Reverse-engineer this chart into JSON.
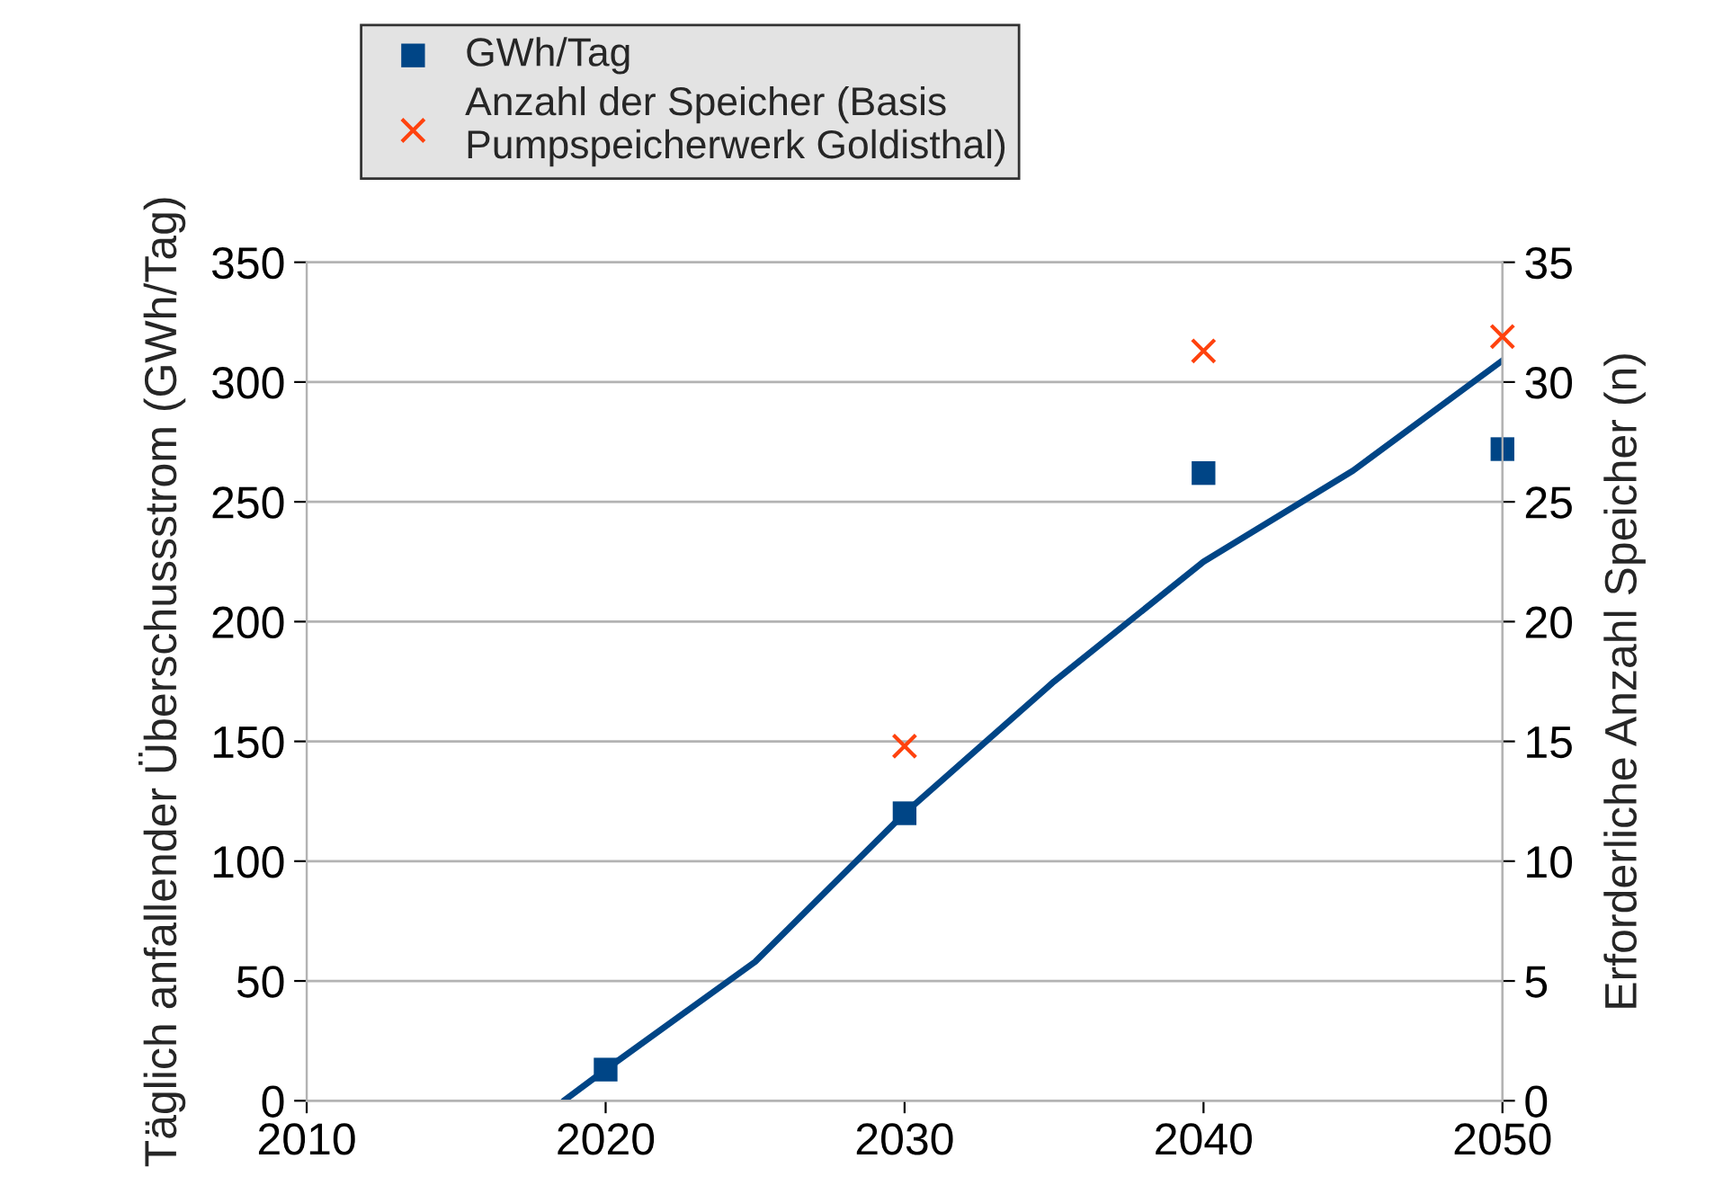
{
  "chart_data": {
    "type": "scatter",
    "ylabel": "Täglich anfallender Überschussstrom (GWh/Tag)",
    "y2label": "Erforderliche Anzahl Speicher (n)",
    "xlim": [
      2010,
      2050
    ],
    "xticks": [
      2010,
      2020,
      2030,
      2040,
      2050
    ],
    "ylim": [
      0,
      350
    ],
    "yticks": [
      0,
      50,
      100,
      150,
      200,
      250,
      300,
      350
    ],
    "y2lim": [
      0,
      35
    ],
    "y2ticks": [
      0,
      5,
      10,
      15,
      20,
      25,
      30,
      35
    ],
    "grid": "y",
    "legend": "top left",
    "series": [
      {
        "name": "GWh/Tag",
        "marker": "square",
        "color": "#004586",
        "x": [
          2020,
          2030,
          2040,
          2050
        ],
        "values": [
          13,
          120,
          262,
          272
        ]
      },
      {
        "name": "Anzahl der Speicher (Basis\nPumpspeicherwerk Goldisthal)",
        "marker": "cross",
        "color": "#ff420e",
        "axis": "y2",
        "x": [
          2030,
          2040,
          2050
        ],
        "values": [
          14.8,
          31.3,
          31.9
        ]
      },
      {
        "type": "line",
        "color": "#004586",
        "line_style": "solid",
        "marker": "none",
        "x": [
          2018.6,
          2020,
          2025,
          2030,
          2035,
          2040,
          2045,
          2050
        ],
        "values": [
          0,
          13,
          58,
          120,
          175,
          225,
          263,
          309
        ]
      }
    ]
  }
}
